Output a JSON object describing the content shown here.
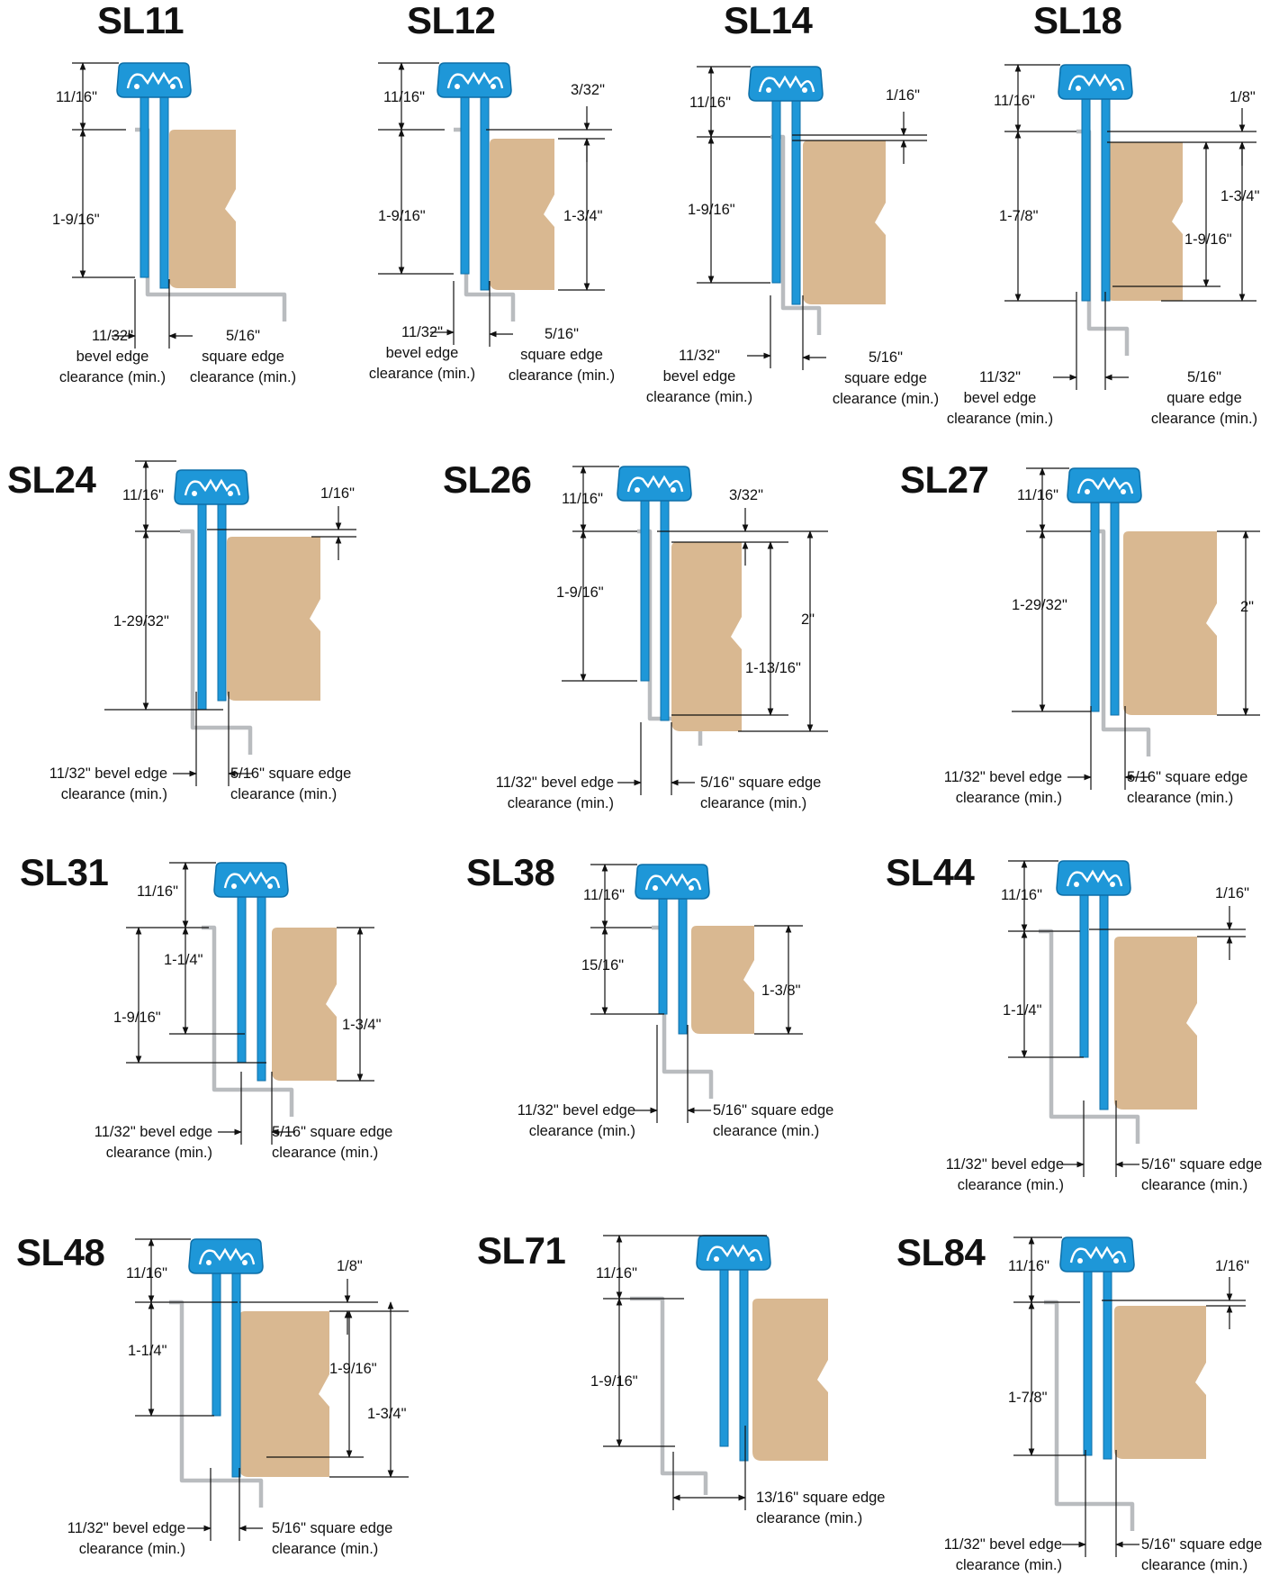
{
  "colors": {
    "profile": "#1e97d8",
    "outline": "#0d6fa8",
    "door": "#d9b891",
    "frame": "#b9bcbf",
    "dim_line": "#111111"
  },
  "panels": [
    {
      "id": "SL11",
      "title": "SL11",
      "variant": "a",
      "left_pair": [
        "11/16\"",
        "1-9/16\""
      ],
      "right_pair": [],
      "notes": [
        {
          "lines": [
            "11/32\"",
            "bevel edge",
            "clearance (min.)"
          ]
        },
        {
          "lines": [
            "5/16\"",
            "square edge",
            "clearance (min.)"
          ]
        }
      ]
    },
    {
      "id": "SL12",
      "title": "SL12",
      "variant": "a",
      "left_pair": [
        "11/16\"",
        "1-9/16\""
      ],
      "right_pair": [
        "3/32\"",
        "1-3/4\""
      ],
      "notes": [
        {
          "lines": [
            "11/32\"",
            "bevel edge",
            "clearance (min.)"
          ]
        },
        {
          "lines": [
            "5/16\"",
            "square edge",
            "clearance (min.)"
          ]
        }
      ]
    },
    {
      "id": "SL14",
      "title": "SL14",
      "variant": "a",
      "left_pair": [
        "11/16\"",
        "1-9/16\""
      ],
      "right_pair": [
        "1/16\""
      ],
      "notes": [
        {
          "lines": [
            "11/32\"",
            "bevel edge",
            "clearance (min.)"
          ]
        },
        {
          "lines": [
            "5/16\"",
            "square edge",
            "clearance (min.)"
          ]
        }
      ]
    },
    {
      "id": "SL18",
      "title": "SL18",
      "variant": "a",
      "left_pair": [
        "11/16\"",
        "1-7/8\""
      ],
      "right_pair": [
        "1/8\"",
        "1-3/4\"",
        "1-9/16\""
      ],
      "notes": [
        {
          "lines": [
            "11/32\"",
            "bevel edge",
            "clearance (min.)"
          ]
        },
        {
          "lines": [
            "5/16\"",
            "quare edge",
            "clearance (min.)"
          ]
        }
      ]
    },
    {
      "id": "SL24",
      "title": "SL24",
      "variant": "b",
      "left_pair": [
        "11/16\"",
        "1-29/32\""
      ],
      "right_pair": [
        "1/16\""
      ],
      "notes": [
        {
          "lines": [
            "11/32\" bevel edge",
            "clearance (min.)"
          ]
        },
        {
          "lines": [
            "5/16\" square edge",
            "clearance (min.)"
          ]
        }
      ]
    },
    {
      "id": "SL26",
      "title": "SL26",
      "variant": "b",
      "left_pair": [
        "11/16\"",
        "1-9/16\""
      ],
      "right_pair": [
        "3/32\"",
        "1-13/16\"",
        "2\""
      ],
      "notes": [
        {
          "lines": [
            "11/32\" bevel edge",
            "clearance (min.)"
          ]
        },
        {
          "lines": [
            "5/16\" square edge",
            "clearance (min.)"
          ]
        }
      ]
    },
    {
      "id": "SL27",
      "title": "SL27",
      "variant": "b",
      "left_pair": [
        "11/16\"",
        "1-29/32\""
      ],
      "right_pair": [
        "2\""
      ],
      "notes": [
        {
          "lines": [
            "11/32\" bevel edge",
            "clearance (min.)"
          ]
        },
        {
          "lines": [
            "5/16\" square edge",
            "clearance (min.)"
          ]
        }
      ]
    },
    {
      "id": "SL31",
      "title": "SL31",
      "variant": "b",
      "left_pair": [
        "11/16\"",
        "1-1/4\"",
        "1-9/16\""
      ],
      "right_pair": [
        "1-3/4\""
      ],
      "notes": [
        {
          "lines": [
            "11/32\" bevel edge",
            "clearance (min.)"
          ]
        },
        {
          "lines": [
            "5/16\" square edge",
            "clearance (min.)"
          ]
        }
      ]
    },
    {
      "id": "SL38",
      "title": "SL38",
      "variant": "b",
      "left_pair": [
        "11/16\"",
        "15/16\""
      ],
      "right_pair": [
        "1-3/8\""
      ],
      "notes": [
        {
          "lines": [
            "11/32\" bevel edge",
            "clearance (min.)"
          ]
        },
        {
          "lines": [
            "5/16\" square edge",
            "clearance (min.)"
          ]
        }
      ]
    },
    {
      "id": "SL44",
      "title": "SL44",
      "variant": "b",
      "left_pair": [
        "11/16\"",
        "1-1/4\""
      ],
      "right_pair": [
        "1/16\""
      ],
      "notes": [
        {
          "lines": [
            "11/32\" bevel edge",
            "clearance (min.)"
          ]
        },
        {
          "lines": [
            "5/16\" square edge",
            "clearance (min.)"
          ]
        }
      ]
    },
    {
      "id": "SL48",
      "title": "SL48",
      "variant": "b",
      "left_pair": [
        "11/16\"",
        "1-1/4\""
      ],
      "right_pair": [
        "1/8\"",
        "1-9/16\"",
        "1-3/4\""
      ],
      "notes": [
        {
          "lines": [
            "11/32\" bevel edge",
            "clearance (min.)"
          ]
        },
        {
          "lines": [
            "5/16\" square edge",
            "clearance (min.)"
          ]
        }
      ]
    },
    {
      "id": "SL71",
      "title": "SL71",
      "variant": "b",
      "left_pair": [
        "11/16\"",
        "1-9/16\""
      ],
      "right_pair": [],
      "notes": [
        {
          "lines": [
            "13/16\" square edge",
            "clearance (min.)"
          ]
        }
      ]
    },
    {
      "id": "SL84",
      "title": "SL84",
      "variant": "b",
      "left_pair": [
        "11/16\"",
        "1-7/8\""
      ],
      "right_pair": [
        "1/16\""
      ],
      "notes": [
        {
          "lines": [
            "11/32\" bevel edge",
            "clearance (min.)"
          ]
        },
        {
          "lines": [
            "5/16\" square edge",
            "clearance (min.)"
          ]
        }
      ]
    }
  ]
}
